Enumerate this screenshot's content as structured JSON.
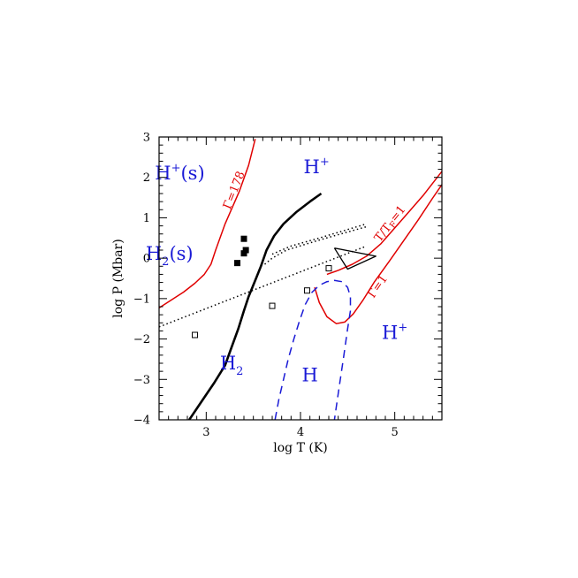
{
  "chart_data": {
    "type": "line",
    "xlabel": "log T (K)",
    "ylabel": "log P (Mbar)",
    "xlim": [
      2.5,
      5.5
    ],
    "ylim": [
      -4,
      3
    ],
    "x_ticks": [
      3,
      4,
      5
    ],
    "y_ticks": [
      -4,
      -3,
      -2,
      -1,
      0,
      1,
      2,
      3
    ],
    "grid": false,
    "colors": {
      "axis": "#000000",
      "red": "#e00000",
      "blue": "#1a1ad6",
      "black": "#000000"
    },
    "region_labels": [
      {
        "base": "H",
        "sup": "+",
        "sub": "",
        "suffix": "(s)",
        "x": 2.72,
        "y": 1.95
      },
      {
        "base": "H",
        "sup": "+",
        "sub": "",
        "suffix": "",
        "x": 4.17,
        "y": 2.1
      },
      {
        "base": "H",
        "sup": "",
        "sub": "2",
        "suffix": "(s)",
        "x": 2.61,
        "y": -0.04
      },
      {
        "base": "H",
        "sup": "",
        "sub": "2",
        "suffix": "",
        "x": 3.27,
        "y": -2.75
      },
      {
        "base": "H",
        "sup": "",
        "sub": "",
        "suffix": "",
        "x": 4.1,
        "y": -3.05
      },
      {
        "base": "H",
        "sup": "+",
        "sub": "",
        "suffix": "",
        "x": 5.0,
        "y": -2.0
      }
    ],
    "curve_labels": [
      {
        "text": "Γ=178",
        "x": 3.33,
        "y": 1.65,
        "angle": -68
      },
      {
        "text": "T/TF=1",
        "x": 4.98,
        "y": 0.8,
        "angle": -52
      },
      {
        "text": "Γ=1",
        "x": 4.85,
        "y": -0.75,
        "angle": -55
      }
    ],
    "series": [
      {
        "style": "black-thick",
        "points": [
          [
            2.82,
            -4.0
          ],
          [
            2.95,
            -3.55
          ],
          [
            3.08,
            -3.1
          ],
          [
            3.2,
            -2.65
          ],
          [
            3.27,
            -2.2
          ],
          [
            3.34,
            -1.75
          ],
          [
            3.4,
            -1.3
          ],
          [
            3.45,
            -0.95
          ],
          [
            3.52,
            -0.55
          ],
          [
            3.58,
            -0.2
          ],
          [
            3.64,
            0.2
          ],
          [
            3.72,
            0.55
          ],
          [
            3.82,
            0.85
          ],
          [
            3.96,
            1.15
          ],
          [
            4.1,
            1.4
          ],
          [
            4.22,
            1.6
          ]
        ]
      },
      {
        "style": "red",
        "points": [
          [
            2.5,
            -1.23
          ],
          [
            2.62,
            -1.05
          ],
          [
            2.76,
            -0.84
          ],
          [
            2.88,
            -0.62
          ],
          [
            2.98,
            -0.4
          ],
          [
            3.05,
            -0.15
          ],
          [
            3.1,
            0.2
          ],
          [
            3.2,
            0.85
          ],
          [
            3.35,
            1.65
          ],
          [
            3.45,
            2.3
          ],
          [
            3.52,
            2.95
          ]
        ]
      },
      {
        "style": "red",
        "points": [
          [
            4.28,
            -0.4
          ],
          [
            4.4,
            -0.3
          ],
          [
            4.55,
            -0.15
          ],
          [
            4.7,
            0.05
          ],
          [
            4.85,
            0.35
          ],
          [
            5.0,
            0.75
          ],
          [
            5.15,
            1.15
          ],
          [
            5.3,
            1.55
          ],
          [
            5.5,
            2.15
          ]
        ]
      },
      {
        "style": "red",
        "points": [
          [
            4.15,
            -0.72
          ],
          [
            4.2,
            -1.1
          ],
          [
            4.28,
            -1.45
          ],
          [
            4.38,
            -1.62
          ],
          [
            4.47,
            -1.58
          ],
          [
            4.56,
            -1.38
          ],
          [
            4.66,
            -1.05
          ],
          [
            4.78,
            -0.6
          ],
          [
            4.95,
            -0.05
          ],
          [
            5.1,
            0.45
          ],
          [
            5.25,
            0.95
          ],
          [
            5.4,
            1.48
          ],
          [
            5.5,
            1.82
          ]
        ]
      },
      {
        "style": "blue-dashed",
        "points": [
          [
            3.73,
            -4.0
          ],
          [
            3.77,
            -3.5
          ],
          [
            3.82,
            -3.0
          ],
          [
            3.87,
            -2.5
          ],
          [
            3.93,
            -2.0
          ],
          [
            3.99,
            -1.55
          ],
          [
            4.05,
            -1.15
          ],
          [
            4.12,
            -0.85
          ],
          [
            4.2,
            -0.67
          ],
          [
            4.28,
            -0.58
          ],
          [
            4.36,
            -0.55
          ],
          [
            4.44,
            -0.58
          ],
          [
            4.5,
            -0.72
          ],
          [
            4.53,
            -0.95
          ],
          [
            4.53,
            -1.3
          ],
          [
            4.5,
            -1.75
          ],
          [
            4.46,
            -2.4
          ],
          [
            4.41,
            -3.2
          ],
          [
            4.36,
            -4.0
          ]
        ]
      },
      {
        "style": "black-dotted",
        "points": [
          [
            2.5,
            -1.7
          ],
          [
            4.7,
            0.3
          ]
        ]
      },
      {
        "style": "black-dotted",
        "points": [
          [
            3.62,
            -0.15
          ],
          [
            3.7,
            0.0
          ],
          [
            3.85,
            0.2
          ],
          [
            4.2,
            0.45
          ],
          [
            4.7,
            0.78
          ]
        ]
      },
      {
        "style": "black-dotted",
        "points": [
          [
            3.7,
            0.1
          ],
          [
            3.9,
            0.3
          ],
          [
            4.2,
            0.5
          ],
          [
            4.7,
            0.85
          ]
        ]
      },
      {
        "style": "black-polygon",
        "points": [
          [
            4.36,
            0.25
          ],
          [
            4.8,
            0.05
          ],
          [
            4.5,
            -0.27
          ],
          [
            4.36,
            0.25
          ]
        ]
      }
    ],
    "filled_squares": [
      [
        3.4,
        0.48
      ],
      [
        3.4,
        0.12
      ],
      [
        3.42,
        0.2
      ],
      [
        3.33,
        -0.12
      ]
    ],
    "open_squares": [
      [
        2.88,
        -1.9
      ],
      [
        3.7,
        -1.18
      ],
      [
        4.07,
        -0.8
      ],
      [
        4.3,
        -0.25
      ]
    ]
  }
}
